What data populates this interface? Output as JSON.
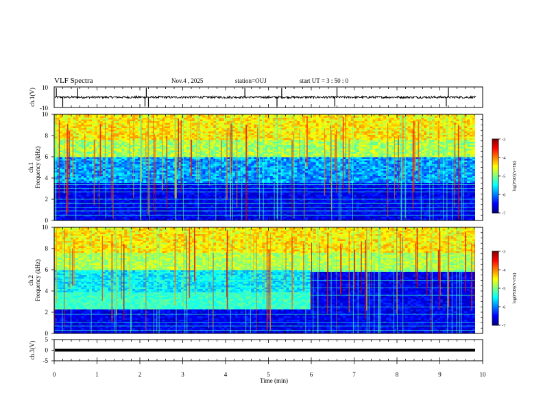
{
  "header": {
    "title": "VLF Spectra",
    "date": "Nov.4 , 2025",
    "station": "station=OUJ",
    "start": "start UT = 3 : 50 : 0"
  },
  "chart_data": [
    {
      "type": "line",
      "ylabel": "ch.1(V)",
      "ylim": [
        -10,
        10
      ],
      "yticks": [
        "10",
        "-10"
      ],
      "baseline": 0,
      "spikes_min": [
        0.05,
        0.2,
        0.55,
        2.12,
        2.15,
        2.2,
        4.45,
        5.2,
        5.31,
        6.55,
        6.6,
        9.15,
        9.2
      ]
    },
    {
      "type": "heatmap",
      "ylabel": "Frequency (kHz)",
      "ylabel2": "ch.1",
      "ylim": [
        0,
        10
      ],
      "yticks": [
        "10",
        "8",
        "6",
        "4",
        "2",
        "0"
      ],
      "colorbar": {
        "label": "log(PSD)(V²/Hz)",
        "ticks": [
          "-3",
          "-4",
          "-5",
          "-6",
          "-7"
        ],
        "range": [
          -7,
          -3
        ]
      }
    },
    {
      "type": "heatmap",
      "ylabel": "Frequency (kHz)",
      "ylabel2": "ch.2",
      "ylim": [
        0,
        10
      ],
      "yticks": [
        "10",
        "8",
        "6",
        "4",
        "2",
        "0"
      ],
      "transition_min": 6.0,
      "colorbar": {
        "label": "log(PSD)(V²/Hz)",
        "ticks": [
          "-3",
          "-4",
          "-5",
          "-6",
          "-7"
        ],
        "range": [
          -7,
          -3
        ]
      }
    },
    {
      "type": "line",
      "ylabel": "ch.3(V)",
      "ylim": [
        -5,
        5
      ],
      "yticks": [
        "5",
        "0",
        "-5"
      ],
      "value": 0,
      "xlabel": "Time (min)",
      "xlim": [
        0,
        10
      ],
      "xticks": [
        "0",
        "1",
        "2",
        "3",
        "4",
        "5",
        "6",
        "7",
        "8",
        "9",
        "10"
      ]
    }
  ]
}
